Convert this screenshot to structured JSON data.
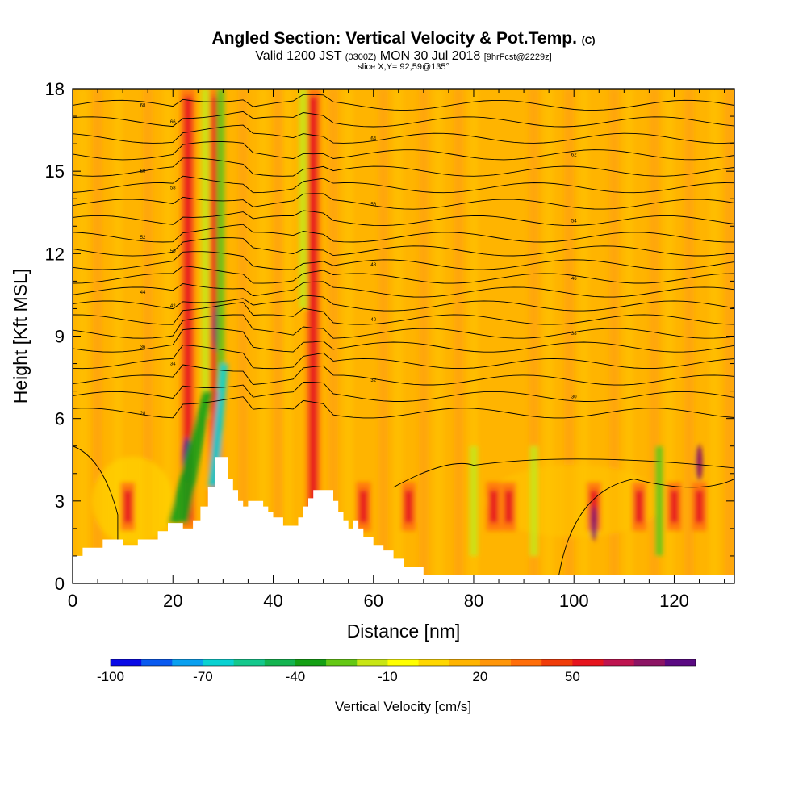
{
  "header": {
    "title_main": "Angled Section: Vertical Velocity & Pot.Temp.",
    "title_unit": "(C)",
    "valid_prefix": "Valid 1200 JST",
    "valid_utc": "(0300Z)",
    "valid_date": "MON 30 Jul 2018",
    "valid_fcst": "[9hrFcst@2229z]",
    "slice": "slice X,Y= 92,59@135°"
  },
  "chart_data": {
    "type": "heatmap",
    "xlabel": "Distance [nm]",
    "ylabel": "Height [Kft MSL]",
    "xlim": [
      0,
      132
    ],
    "ylim": [
      0,
      18
    ],
    "x_ticks": [
      0,
      20,
      40,
      60,
      80,
      100,
      120
    ],
    "y_ticks": [
      0,
      3,
      6,
      9,
      12,
      15,
      18
    ],
    "colorbar": {
      "title": "Vertical Velocity [cm/s]",
      "labels": [
        "-100",
        "-70",
        "-40",
        "-10",
        "20",
        "50"
      ],
      "colors": [
        "#0a0ae6",
        "#0a5af0",
        "#0aa0f0",
        "#0ad2d2",
        "#14c88c",
        "#14b450",
        "#14a014",
        "#64c814",
        "#c8e614",
        "#ffff00",
        "#ffd700",
        "#ffb400",
        "#ff960a",
        "#ff6e0a",
        "#f03c0a",
        "#e6141e",
        "#be1450",
        "#8c1464",
        "#5a0a82"
      ]
    },
    "background_color": "#ffb400",
    "terrain": [
      [
        0,
        1.0
      ],
      [
        2,
        1.0
      ],
      [
        2,
        1.3
      ],
      [
        6,
        1.3
      ],
      [
        6,
        1.6
      ],
      [
        10,
        1.6
      ],
      [
        10,
        1.4
      ],
      [
        13,
        1.4
      ],
      [
        13,
        1.6
      ],
      [
        17,
        1.6
      ],
      [
        17,
        1.9
      ],
      [
        19,
        1.9
      ],
      [
        19,
        2.2
      ],
      [
        22,
        2.2
      ],
      [
        22,
        2.0
      ],
      [
        24,
        2.0
      ],
      [
        24,
        2.3
      ],
      [
        25.5,
        2.3
      ],
      [
        25.5,
        2.8
      ],
      [
        27,
        2.8
      ],
      [
        27,
        3.5
      ],
      [
        28.5,
        3.5
      ],
      [
        28.5,
        4.6
      ],
      [
        31,
        4.6
      ],
      [
        31,
        3.8
      ],
      [
        32,
        3.8
      ],
      [
        32,
        3.4
      ],
      [
        33,
        3.4
      ],
      [
        33,
        3.0
      ],
      [
        34,
        3.0
      ],
      [
        34,
        2.8
      ],
      [
        35,
        2.8
      ],
      [
        35,
        3.0
      ],
      [
        38,
        3.0
      ],
      [
        38,
        2.8
      ],
      [
        39,
        2.8
      ],
      [
        39,
        2.6
      ],
      [
        40,
        2.6
      ],
      [
        40,
        2.4
      ],
      [
        42,
        2.4
      ],
      [
        42,
        2.1
      ],
      [
        45,
        2.1
      ],
      [
        45,
        2.4
      ],
      [
        46,
        2.4
      ],
      [
        46,
        2.8
      ],
      [
        47,
        2.8
      ],
      [
        47,
        3.1
      ],
      [
        48,
        3.1
      ],
      [
        48,
        3.4
      ],
      [
        52,
        3.4
      ],
      [
        52,
        3.0
      ],
      [
        53,
        3.0
      ],
      [
        53,
        2.6
      ],
      [
        54,
        2.6
      ],
      [
        54,
        2.3
      ],
      [
        55,
        2.3
      ],
      [
        55,
        2.0
      ],
      [
        56,
        2.0
      ],
      [
        56,
        2.3
      ],
      [
        57,
        2.3
      ],
      [
        57,
        2.0
      ],
      [
        58,
        2.0
      ],
      [
        58,
        1.7
      ],
      [
        60,
        1.7
      ],
      [
        60,
        1.4
      ],
      [
        62,
        1.4
      ],
      [
        62,
        1.2
      ],
      [
        64,
        1.2
      ],
      [
        64,
        0.9
      ],
      [
        66,
        0.9
      ],
      [
        66,
        0.6
      ],
      [
        70,
        0.6
      ],
      [
        70,
        0.3
      ],
      [
        132,
        0.3
      ],
      [
        132,
        0
      ],
      [
        0,
        0
      ]
    ],
    "isentropes": [
      {
        "label": "68",
        "y": 17.4
      },
      {
        "label": "66",
        "y": 16.8
      },
      {
        "label": "64",
        "y": 16.2
      },
      {
        "label": "62",
        "y": 15.6
      },
      {
        "label": "60",
        "y": 15.0
      },
      {
        "label": "58",
        "y": 14.4
      },
      {
        "label": "56",
        "y": 13.8
      },
      {
        "label": "54",
        "y": 13.2
      },
      {
        "label": "52",
        "y": 12.6
      },
      {
        "label": "50",
        "y": 12.1
      },
      {
        "label": "48",
        "y": 11.6
      },
      {
        "label": "46",
        "y": 11.1
      },
      {
        "label": "44",
        "y": 10.6
      },
      {
        "label": "42",
        "y": 10.1
      },
      {
        "label": "40",
        "y": 9.6
      },
      {
        "label": "38",
        "y": 9.1
      },
      {
        "label": "36",
        "y": 8.6
      },
      {
        "label": "34",
        "y": 8.0
      },
      {
        "label": "32",
        "y": 7.4
      },
      {
        "label": "30",
        "y": 6.8
      },
      {
        "label": "28",
        "y": 6.2
      }
    ],
    "updraft_cores_x": [
      11,
      23,
      28.5,
      48,
      58,
      67,
      84,
      87,
      104,
      113,
      120,
      125
    ],
    "downdraft_bands_x": [
      26.5,
      29.5,
      46
    ]
  }
}
